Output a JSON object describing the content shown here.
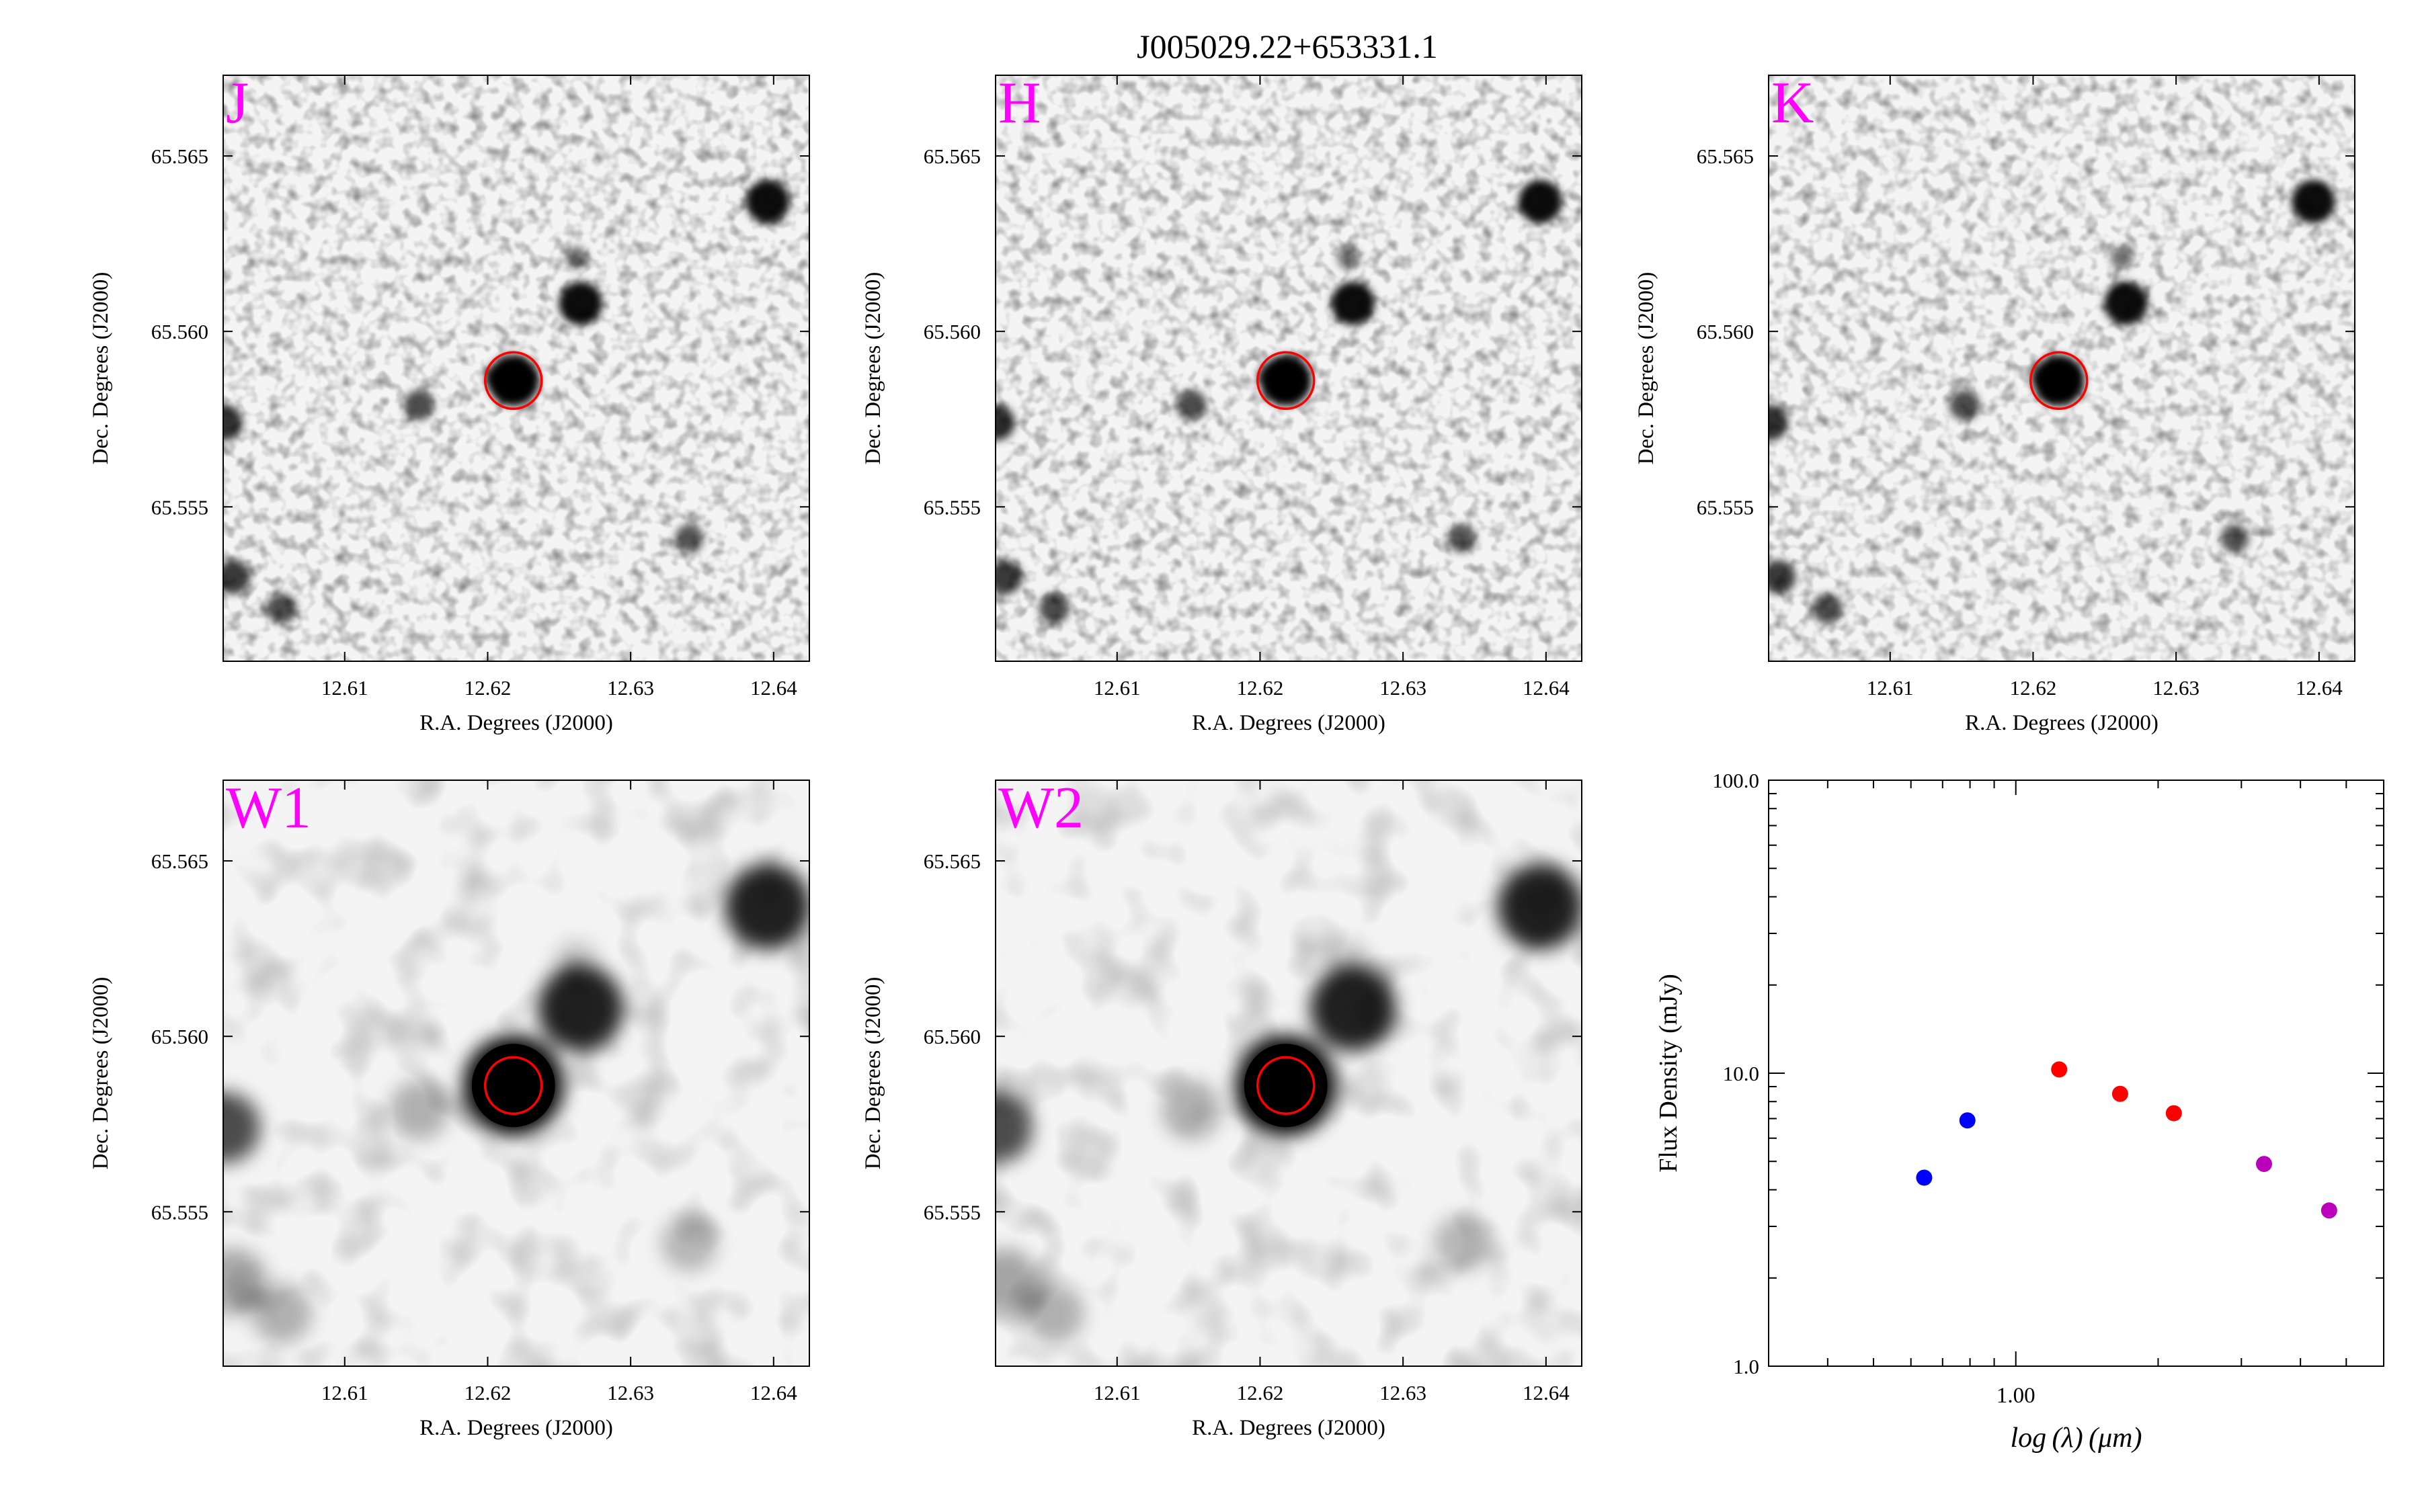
{
  "figure": {
    "title": "J005029.22+653331.1"
  },
  "cutouts": [
    {
      "band": "J",
      "style": "2mass"
    },
    {
      "band": "H",
      "style": "2mass"
    },
    {
      "band": "K",
      "style": "2mass"
    },
    {
      "band": "W1",
      "style": "wise"
    },
    {
      "band": "W2",
      "style": "wise"
    }
  ],
  "cutout_axes": {
    "xlabel": "R.A. Degrees (J2000)",
    "ylabel": "Dec. Degrees (J2000)",
    "xlim": [
      12.6015,
      12.6425
    ],
    "ylim": [
      65.5506,
      65.5673
    ],
    "xticks": [
      12.61,
      12.62,
      12.63,
      12.64
    ],
    "xtick_labels": [
      "12.61",
      "12.62",
      "12.63",
      "12.64"
    ],
    "yticks": [
      65.555,
      65.56,
      65.565
    ],
    "ytick_labels": [
      "65.555",
      "65.560",
      "65.565"
    ],
    "target": {
      "ra": 12.6218,
      "dec": 65.5586
    },
    "band_label_color": "#ff00ff",
    "marker_color": "#ff0000"
  },
  "sources": [
    {
      "ra": 12.6218,
      "dec": 65.5586,
      "mag": 1.0
    },
    {
      "ra": 12.6265,
      "dec": 65.5608,
      "mag": 0.8
    },
    {
      "ra": 12.6396,
      "dec": 65.5637,
      "mag": 0.8
    },
    {
      "ra": 12.6152,
      "dec": 65.5579,
      "mag": 0.45
    },
    {
      "ra": 12.6341,
      "dec": 65.5541,
      "mag": 0.4
    },
    {
      "ra": 12.6016,
      "dec": 65.5574,
      "mag": 0.6
    },
    {
      "ra": 12.6022,
      "dec": 65.553,
      "mag": 0.55
    },
    {
      "ra": 12.6056,
      "dec": 65.5521,
      "mag": 0.45
    },
    {
      "ra": 12.6208,
      "dec": 65.5587,
      "mag": 0.4
    },
    {
      "ra": 12.6262,
      "dec": 65.5621,
      "mag": 0.25
    }
  ],
  "chart_data": {
    "type": "scatter",
    "xlabel": "log (λ) (μm)",
    "ylabel": "Flux Density (mJy)",
    "xscale": "log",
    "yscale": "log",
    "xlim": [
      0.3,
      6.0
    ],
    "ylim": [
      1.0,
      100.0
    ],
    "xtick_labels": [
      {
        "value": 1.0,
        "label": "1.00"
      }
    ],
    "ytick_labels": [
      {
        "value": 1.0,
        "label": "1.0"
      },
      {
        "value": 10.0,
        "label": "10.0"
      },
      {
        "value": 100.0,
        "label": "100.0"
      }
    ],
    "series": [
      {
        "color": "#0000ff",
        "points": [
          {
            "x": 0.64,
            "y": 4.4
          },
          {
            "x": 0.79,
            "y": 6.9
          }
        ]
      },
      {
        "color": "#ff0000",
        "points": [
          {
            "x": 1.235,
            "y": 10.3
          },
          {
            "x": 1.662,
            "y": 8.5
          },
          {
            "x": 2.159,
            "y": 7.3
          }
        ]
      },
      {
        "color": "#bb00bb",
        "points": [
          {
            "x": 3.35,
            "y": 4.9
          },
          {
            "x": 4.6,
            "y": 3.4
          }
        ]
      }
    ]
  }
}
